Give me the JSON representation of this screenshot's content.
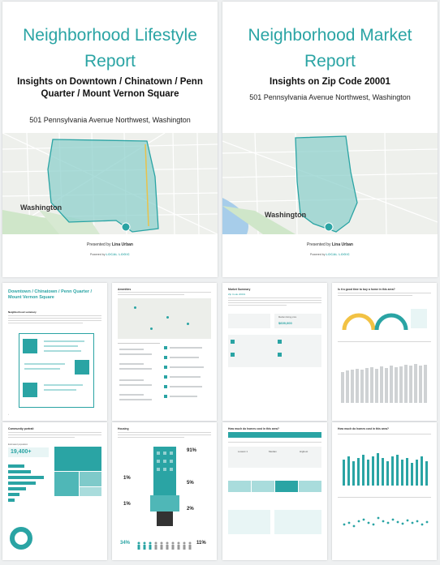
{
  "colors": {
    "accent": "#2aa4a4",
    "map_area": "#8fd0cc",
    "gauge_yellow": "#f2c244",
    "gauge_teal": "#2aa4a4"
  },
  "cover_left": {
    "title": "Neighborhood Lifestyle Report",
    "subtitle": "Insights on Downtown / Chinatown / Penn Quarter / Mount Vernon Square",
    "address": "501 Pennsylvania Avenue Northwest, Washington",
    "map_label": "Washington",
    "presented_by": "Presented by",
    "agent": "Lina Urban",
    "powered_by": "Powered by",
    "brand": "LOCAL LOGIC"
  },
  "cover_right": {
    "title": "Neighborhood Market Report",
    "subtitle": "Insights on Zip Code 20001",
    "address": "501 Pennsylvania Avenue Northwest, Washington",
    "map_label": "Washington",
    "presented_by": "Presented by",
    "agent": "Lina Urban",
    "powered_by": "Powered by",
    "brand": "LOCAL LOGIC"
  },
  "thumbs": {
    "t1": {
      "title": "Downtown / Chinatown / Penn Quarter / Mount Vernon Square",
      "section": "Neighborhood summary"
    },
    "t2": {
      "title": "Amenities"
    },
    "t3": {
      "title": "Market Summary",
      "zip": "Zip Code 20001",
      "stat_label": "Median listing price",
      "stat_value": "$609,000"
    },
    "t4": {
      "title": "Is it a good time to buy a home in this area?"
    },
    "t5": {
      "title": "Community portrait",
      "pop_label": "Estimated population",
      "pop_value": "19,400+"
    },
    "t6": {
      "title": "Housing",
      "pct1": "91%",
      "pct2": "1%",
      "pct3": "5%",
      "pct4": "1%",
      "pct5": "2%",
      "left_pct": "34%",
      "right_pct": "11%"
    },
    "t7": {
      "title": "How much do homes cost in this area?",
      "low": "Lowest 1",
      "med": "Median",
      "high": "Highest"
    },
    "t8": {
      "title": "How much do homes cost in this area?"
    }
  }
}
